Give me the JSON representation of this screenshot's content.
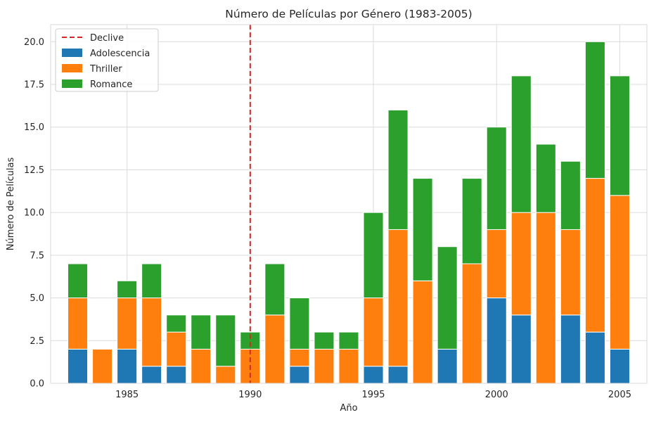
{
  "chart_data": {
    "type": "bar",
    "stacked": true,
    "title": "Número de Películas por Género (1983-2005)",
    "xlabel": "Año",
    "ylabel": "Número de Películas",
    "xlim": [
      1981.9,
      2006.1
    ],
    "ylim": [
      0,
      21
    ],
    "xticks": [
      1985,
      1990,
      1995,
      2000,
      2005
    ],
    "yticks": [
      0.0,
      2.5,
      5.0,
      7.5,
      10.0,
      12.5,
      15.0,
      17.5,
      20.0
    ],
    "ytick_labels": [
      "0.0",
      "2.5",
      "5.0",
      "7.5",
      "10.0",
      "12.5",
      "15.0",
      "17.5",
      "20.0"
    ],
    "grid": true,
    "legend_position": "top-left",
    "x": [
      1983,
      1984,
      1985,
      1986,
      1987,
      1988,
      1989,
      1990,
      1991,
      1992,
      1993,
      1994,
      1995,
      1996,
      1997,
      1998,
      1999,
      2000,
      2001,
      2002,
      2003,
      2004,
      2005
    ],
    "series": [
      {
        "name": "Adolescencia",
        "color": "#1f77b4",
        "values": [
          2,
          0,
          2,
          1,
          1,
          0,
          0,
          0,
          0,
          1,
          0,
          0,
          1,
          1,
          0,
          2,
          0,
          5,
          4,
          0,
          4,
          3,
          2
        ]
      },
      {
        "name": "Thriller",
        "color": "#ff7f0e",
        "values": [
          3,
          2,
          3,
          4,
          2,
          2,
          1,
          2,
          4,
          1,
          2,
          2,
          4,
          8,
          6,
          0,
          7,
          4,
          6,
          10,
          5,
          9,
          9
        ]
      },
      {
        "name": "Romance",
        "color": "#2ca02c",
        "values": [
          2,
          0,
          1,
          2,
          1,
          2,
          3,
          1,
          3,
          3,
          1,
          1,
          5,
          7,
          6,
          6,
          5,
          6,
          8,
          4,
          4,
          8,
          7
        ]
      }
    ],
    "reference_line": {
      "name": "Declive",
      "x": 1990,
      "color": "#d62728",
      "style": "dashed"
    }
  }
}
